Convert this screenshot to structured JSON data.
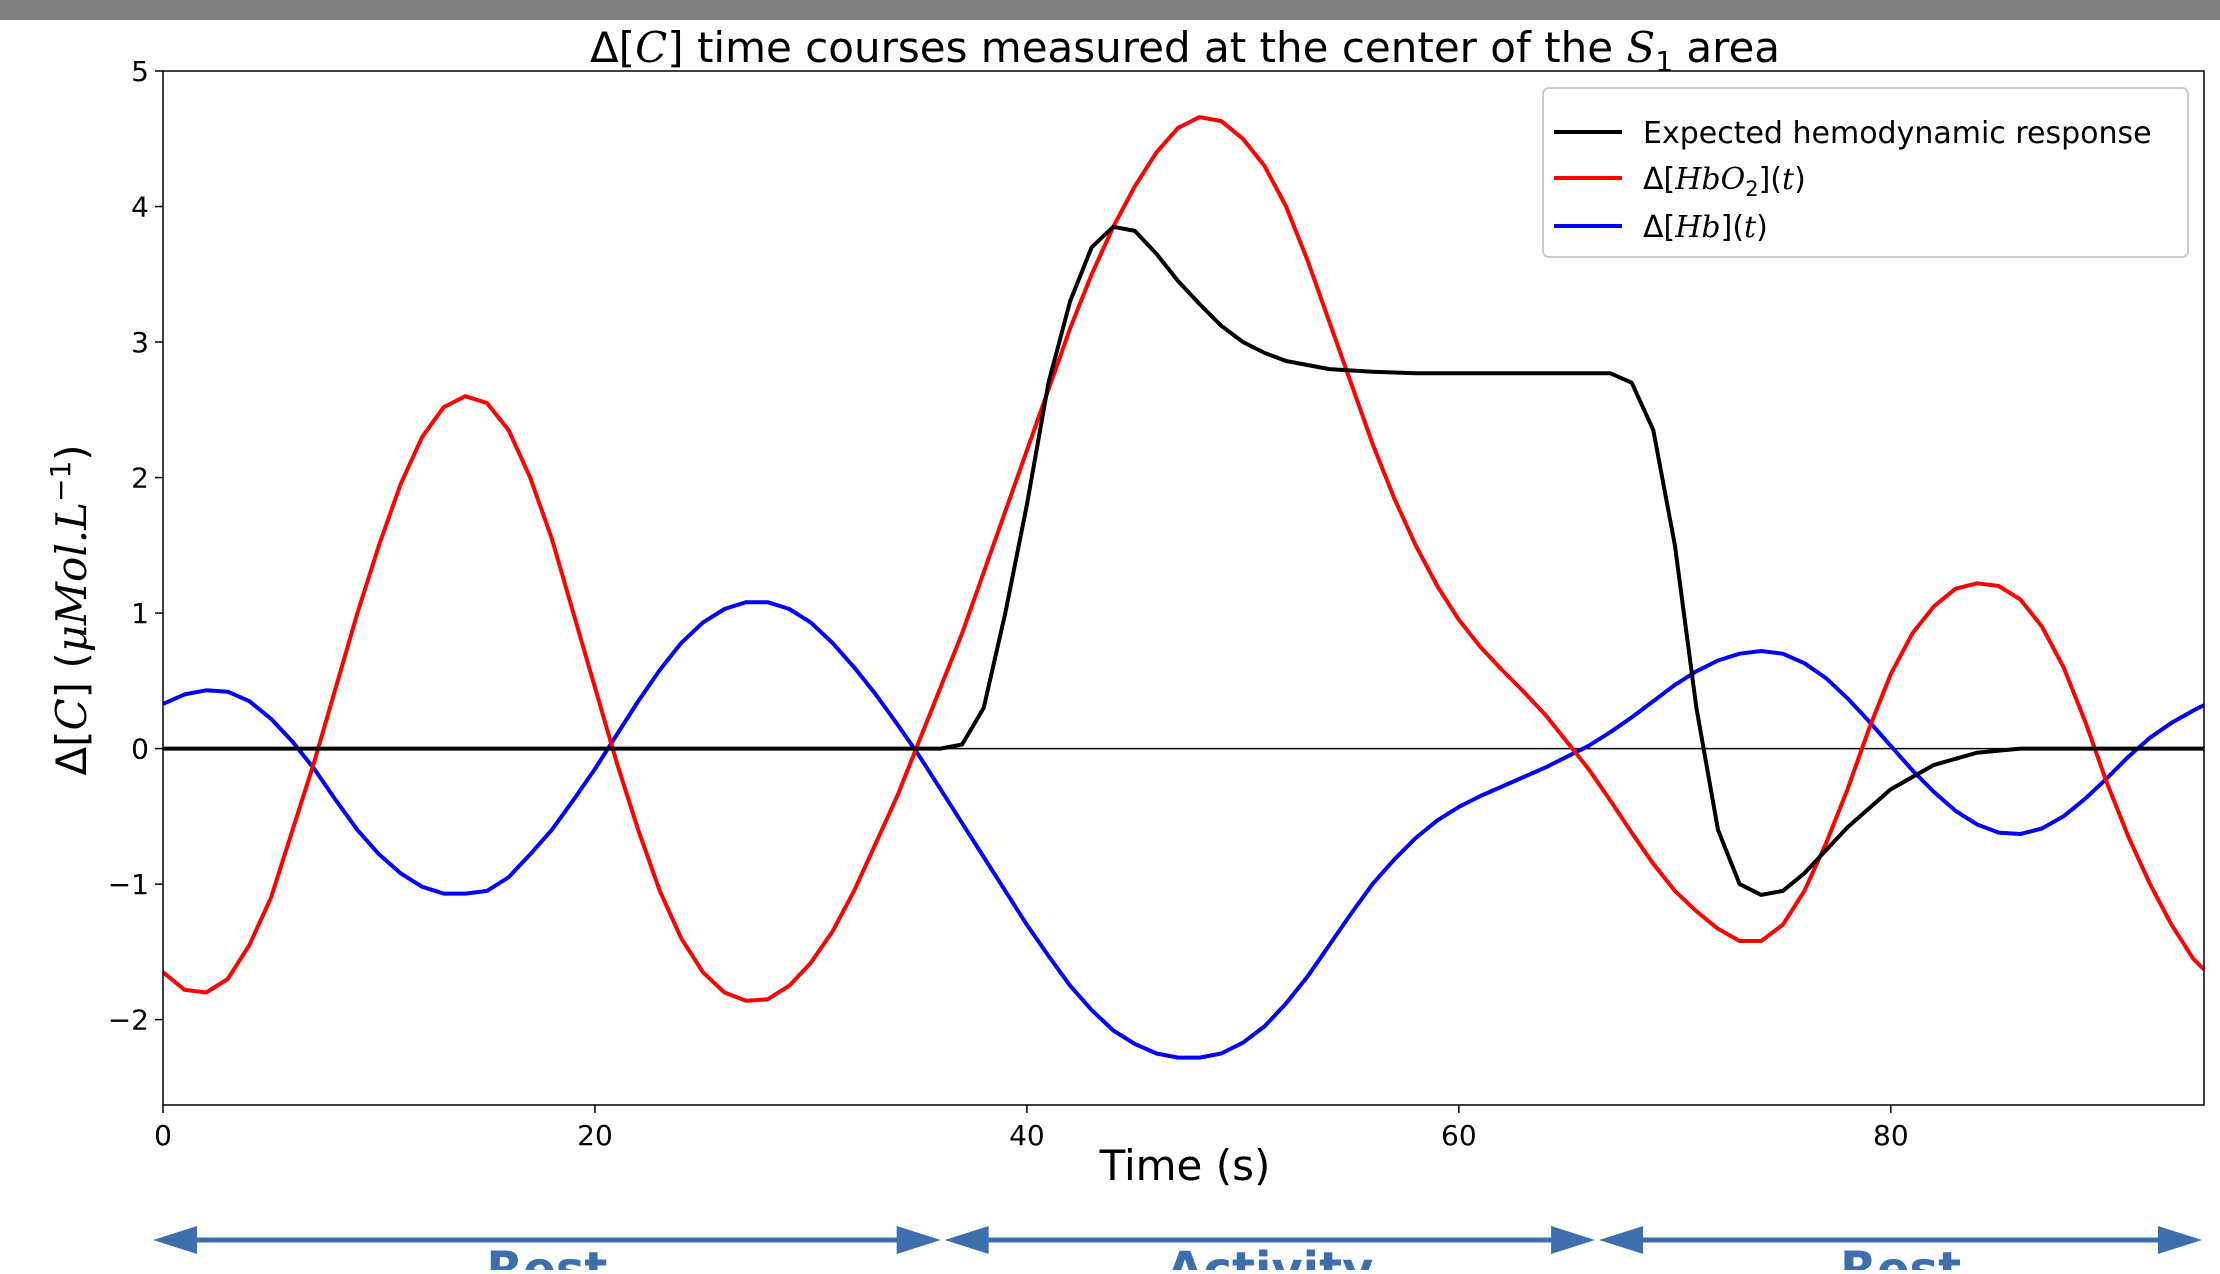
{
  "chart_data": {
    "type": "line",
    "title": "Δ[C] time courses measured at the center of the S₁ area",
    "xlabel": "Time (s)",
    "ylabel": "Δ[C] (μMol.L⁻¹)",
    "xlim": [
      0,
      94.5
    ],
    "ylim": [
      -2.63,
      5
    ],
    "xticks": [
      0,
      20,
      40,
      60,
      80
    ],
    "yticks": [
      -2,
      -1,
      0,
      1,
      2,
      3,
      4,
      5
    ],
    "grid": false,
    "legend_position": "top-right",
    "zero_line": true,
    "series": [
      {
        "name": "Expected hemodynamic response",
        "color": "#000000",
        "points": [
          [
            0,
            0
          ],
          [
            36,
            0
          ],
          [
            37,
            0.03
          ],
          [
            38,
            0.3
          ],
          [
            39,
            1.0
          ],
          [
            40,
            1.8
          ],
          [
            41,
            2.7
          ],
          [
            42,
            3.3
          ],
          [
            43,
            3.7
          ],
          [
            44,
            3.85
          ],
          [
            45,
            3.82
          ],
          [
            46,
            3.65
          ],
          [
            47,
            3.45
          ],
          [
            48,
            3.28
          ],
          [
            49,
            3.12
          ],
          [
            50,
            3.0
          ],
          [
            51,
            2.92
          ],
          [
            52,
            2.86
          ],
          [
            54,
            2.8
          ],
          [
            56,
            2.78
          ],
          [
            58,
            2.77
          ],
          [
            66,
            2.77
          ],
          [
            67,
            2.77
          ],
          [
            68,
            2.7
          ],
          [
            69,
            2.35
          ],
          [
            70,
            1.5
          ],
          [
            71,
            0.3
          ],
          [
            72,
            -0.6
          ],
          [
            73,
            -1.0
          ],
          [
            74,
            -1.08
          ],
          [
            75,
            -1.05
          ],
          [
            76,
            -0.92
          ],
          [
            77,
            -0.75
          ],
          [
            78,
            -0.58
          ],
          [
            80,
            -0.3
          ],
          [
            82,
            -0.12
          ],
          [
            84,
            -0.03
          ],
          [
            86,
            0
          ],
          [
            94.5,
            0
          ]
        ]
      },
      {
        "name": "Δ[HbO₂](t)",
        "color": "#ff0000",
        "points": [
          [
            0,
            -1.65
          ],
          [
            1,
            -1.78
          ],
          [
            2,
            -1.8
          ],
          [
            3,
            -1.7
          ],
          [
            4,
            -1.45
          ],
          [
            5,
            -1.1
          ],
          [
            6,
            -0.6
          ],
          [
            7,
            -0.1
          ],
          [
            8,
            0.45
          ],
          [
            9,
            1.0
          ],
          [
            10,
            1.5
          ],
          [
            11,
            1.95
          ],
          [
            12,
            2.3
          ],
          [
            13,
            2.52
          ],
          [
            14,
            2.6
          ],
          [
            15,
            2.55
          ],
          [
            16,
            2.35
          ],
          [
            17,
            2.0
          ],
          [
            18,
            1.55
          ],
          [
            19,
            1.0
          ],
          [
            20,
            0.45
          ],
          [
            21,
            -0.1
          ],
          [
            22,
            -0.6
          ],
          [
            23,
            -1.05
          ],
          [
            24,
            -1.4
          ],
          [
            25,
            -1.65
          ],
          [
            26,
            -1.8
          ],
          [
            27,
            -1.86
          ],
          [
            28,
            -1.85
          ],
          [
            29,
            -1.75
          ],
          [
            30,
            -1.58
          ],
          [
            31,
            -1.35
          ],
          [
            32,
            -1.05
          ],
          [
            33,
            -0.7
          ],
          [
            34,
            -0.35
          ],
          [
            35,
            0.05
          ],
          [
            36,
            0.45
          ],
          [
            37,
            0.85
          ],
          [
            38,
            1.3
          ],
          [
            39,
            1.75
          ],
          [
            40,
            2.2
          ],
          [
            41,
            2.65
          ],
          [
            42,
            3.1
          ],
          [
            43,
            3.5
          ],
          [
            44,
            3.85
          ],
          [
            45,
            4.15
          ],
          [
            46,
            4.4
          ],
          [
            47,
            4.58
          ],
          [
            48,
            4.66
          ],
          [
            49,
            4.63
          ],
          [
            50,
            4.5
          ],
          [
            51,
            4.3
          ],
          [
            52,
            4.0
          ],
          [
            53,
            3.6
          ],
          [
            54,
            3.15
          ],
          [
            55,
            2.7
          ],
          [
            56,
            2.25
          ],
          [
            57,
            1.85
          ],
          [
            58,
            1.5
          ],
          [
            59,
            1.2
          ],
          [
            60,
            0.95
          ],
          [
            61,
            0.75
          ],
          [
            62,
            0.58
          ],
          [
            63,
            0.42
          ],
          [
            64,
            0.25
          ],
          [
            65,
            0.05
          ],
          [
            66,
            -0.15
          ],
          [
            67,
            -0.38
          ],
          [
            68,
            -0.62
          ],
          [
            69,
            -0.85
          ],
          [
            70,
            -1.05
          ],
          [
            71,
            -1.2
          ],
          [
            72,
            -1.33
          ],
          [
            73,
            -1.42
          ],
          [
            74,
            -1.42
          ],
          [
            75,
            -1.3
          ],
          [
            76,
            -1.05
          ],
          [
            77,
            -0.7
          ],
          [
            78,
            -0.3
          ],
          [
            79,
            0.15
          ],
          [
            80,
            0.55
          ],
          [
            81,
            0.85
          ],
          [
            82,
            1.05
          ],
          [
            83,
            1.18
          ],
          [
            84,
            1.22
          ],
          [
            85,
            1.2
          ],
          [
            86,
            1.1
          ],
          [
            87,
            0.9
          ],
          [
            88,
            0.6
          ],
          [
            89,
            0.2
          ],
          [
            90,
            -0.25
          ],
          [
            91,
            -0.65
          ],
          [
            92,
            -1.0
          ],
          [
            93,
            -1.3
          ],
          [
            94,
            -1.55
          ],
          [
            94.5,
            -1.63
          ]
        ]
      },
      {
        "name": "Δ[Hb](t)",
        "color": "#0000ff",
        "points": [
          [
            0,
            0.33
          ],
          [
            1,
            0.4
          ],
          [
            2,
            0.43
          ],
          [
            3,
            0.42
          ],
          [
            4,
            0.35
          ],
          [
            5,
            0.22
          ],
          [
            6,
            0.05
          ],
          [
            7,
            -0.15
          ],
          [
            8,
            -0.38
          ],
          [
            9,
            -0.6
          ],
          [
            10,
            -0.78
          ],
          [
            11,
            -0.92
          ],
          [
            12,
            -1.02
          ],
          [
            13,
            -1.07
          ],
          [
            14,
            -1.07
          ],
          [
            15,
            -1.05
          ],
          [
            16,
            -0.95
          ],
          [
            17,
            -0.78
          ],
          [
            18,
            -0.6
          ],
          [
            19,
            -0.38
          ],
          [
            20,
            -0.15
          ],
          [
            21,
            0.1
          ],
          [
            22,
            0.35
          ],
          [
            23,
            0.58
          ],
          [
            24,
            0.78
          ],
          [
            25,
            0.93
          ],
          [
            26,
            1.03
          ],
          [
            27,
            1.08
          ],
          [
            28,
            1.08
          ],
          [
            29,
            1.03
          ],
          [
            30,
            0.93
          ],
          [
            31,
            0.78
          ],
          [
            32,
            0.6
          ],
          [
            33,
            0.4
          ],
          [
            34,
            0.18
          ],
          [
            35,
            -0.05
          ],
          [
            36,
            -0.3
          ],
          [
            37,
            -0.55
          ],
          [
            38,
            -0.8
          ],
          [
            39,
            -1.05
          ],
          [
            40,
            -1.3
          ],
          [
            41,
            -1.53
          ],
          [
            42,
            -1.75
          ],
          [
            43,
            -1.93
          ],
          [
            44,
            -2.08
          ],
          [
            45,
            -2.18
          ],
          [
            46,
            -2.25
          ],
          [
            47,
            -2.28
          ],
          [
            48,
            -2.28
          ],
          [
            49,
            -2.25
          ],
          [
            50,
            -2.17
          ],
          [
            51,
            -2.05
          ],
          [
            52,
            -1.88
          ],
          [
            53,
            -1.68
          ],
          [
            54,
            -1.45
          ],
          [
            55,
            -1.22
          ],
          [
            56,
            -1.0
          ],
          [
            57,
            -0.82
          ],
          [
            58,
            -0.66
          ],
          [
            59,
            -0.53
          ],
          [
            60,
            -0.43
          ],
          [
            61,
            -0.35
          ],
          [
            62,
            -0.28
          ],
          [
            63,
            -0.21
          ],
          [
            64,
            -0.14
          ],
          [
            65,
            -0.06
          ],
          [
            66,
            0.02
          ],
          [
            67,
            0.12
          ],
          [
            68,
            0.23
          ],
          [
            69,
            0.35
          ],
          [
            70,
            0.47
          ],
          [
            71,
            0.57
          ],
          [
            72,
            0.65
          ],
          [
            73,
            0.7
          ],
          [
            74,
            0.72
          ],
          [
            75,
            0.7
          ],
          [
            76,
            0.63
          ],
          [
            77,
            0.52
          ],
          [
            78,
            0.37
          ],
          [
            79,
            0.2
          ],
          [
            80,
            0.02
          ],
          [
            81,
            -0.16
          ],
          [
            82,
            -0.32
          ],
          [
            83,
            -0.46
          ],
          [
            84,
            -0.56
          ],
          [
            85,
            -0.62
          ],
          [
            86,
            -0.63
          ],
          [
            87,
            -0.59
          ],
          [
            88,
            -0.5
          ],
          [
            89,
            -0.37
          ],
          [
            90,
            -0.22
          ],
          [
            91,
            -0.06
          ],
          [
            92,
            0.08
          ],
          [
            93,
            0.19
          ],
          [
            94,
            0.28
          ],
          [
            94.5,
            0.32
          ]
        ]
      }
    ]
  },
  "phases": [
    {
      "label": "Rest",
      "start": 0,
      "end": 36.1
    },
    {
      "label": "Activity",
      "start": 36.1,
      "end": 66.4
    },
    {
      "label": "Rest",
      "start": 66.4,
      "end": 94.5
    }
  ],
  "colors": {
    "phase_arrow": "#3d6fad",
    "top_bar": "#808080"
  }
}
